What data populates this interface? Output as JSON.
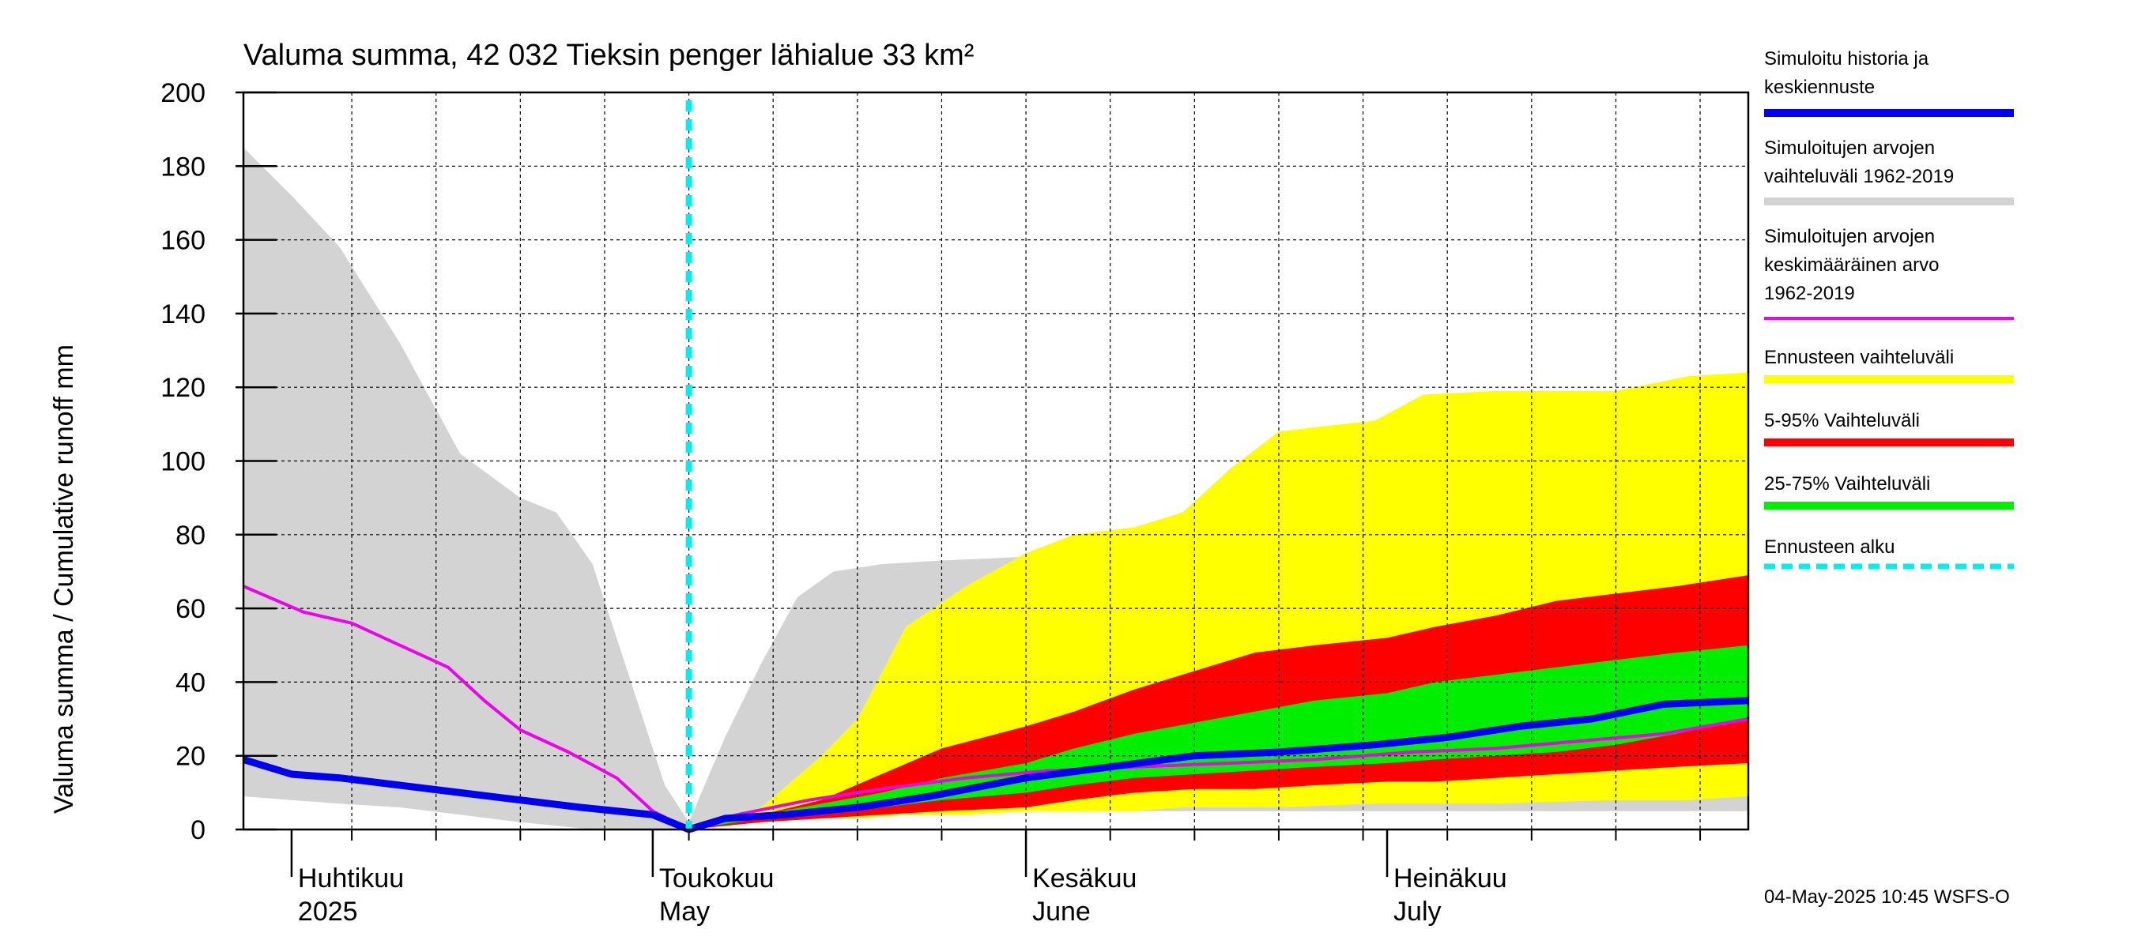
{
  "chart_data": {
    "type": "area",
    "title": "Valuma summa, 42 032 Tieksin penger lähialue 33 km²",
    "ylabel": "Valuma summa / Cumulative runoff     mm",
    "ylim": [
      0,
      200
    ],
    "yticks": [
      0,
      20,
      40,
      60,
      80,
      100,
      120,
      140,
      160,
      180,
      200
    ],
    "xlim": [
      "2025-03-28",
      "2025-07-31"
    ],
    "grid": true,
    "legend_position": "right",
    "month_labels": [
      {
        "date": "2025-04-01",
        "fi": "Huhtikuu",
        "en": "2025"
      },
      {
        "date": "2025-05-01",
        "fi": "Toukokuu",
        "en": "May"
      },
      {
        "date": "2025-06-01",
        "fi": "Kesäkuu",
        "en": "June"
      },
      {
        "date": "2025-07-01",
        "fi": "Heinäkuu",
        "en": "July"
      }
    ],
    "forecast_start": "2025-05-04",
    "colors": {
      "history": "#0000ee",
      "range_sim": "#d3d3d3",
      "mean_sim": "#ee00ee",
      "range_fc": "#ffff00",
      "p5_95": "#ff0000",
      "p25_75": "#00ee00",
      "fc_start": "#00eeee"
    },
    "legend": [
      {
        "lines": [
          "Simuloitu historia ja",
          "keskiennuste"
        ],
        "color": "#0000ee",
        "style": "solid"
      },
      {
        "lines": [
          "Simuloitujen arvojen",
          "vaihteluväli 1962-2019"
        ],
        "color": "#d3d3d3",
        "style": "solid"
      },
      {
        "lines": [
          "Simuloitujen arvojen",
          "keskimääräinen arvo",
          "   1962-2019"
        ],
        "color": "#ee00ee",
        "style": "thin"
      },
      {
        "lines": [
          "Ennusteen vaihteluväli"
        ],
        "color": "#ffff00",
        "style": "solid"
      },
      {
        "lines": [
          "5-95% Vaihteluväli"
        ],
        "color": "#ff0000",
        "style": "solid"
      },
      {
        "lines": [
          "25-75% Vaihteluväli"
        ],
        "color": "#00ee00",
        "style": "solid"
      },
      {
        "lines": [
          "Ennusteen alku"
        ],
        "color": "#00eeee",
        "style": "dashed"
      }
    ],
    "series": [
      {
        "name": "Simuloitujen arvojen vaihteluväli 1962-2019",
        "kind": "band",
        "x": [
          "2025-03-28",
          "2025-04-01",
          "2025-04-05",
          "2025-04-10",
          "2025-04-15",
          "2025-04-20",
          "2025-04-23",
          "2025-04-26",
          "2025-04-29",
          "2025-05-02",
          "2025-05-04",
          "2025-05-07",
          "2025-05-10",
          "2025-05-13",
          "2025-05-16",
          "2025-05-20",
          "2025-05-25",
          "2025-06-01",
          "2025-06-05",
          "2025-06-10",
          "2025-06-15",
          "2025-06-20",
          "2025-06-30",
          "2025-07-10",
          "2025-07-20",
          "2025-07-25",
          "2025-07-31"
        ],
        "low": [
          9,
          8,
          7,
          6,
          4,
          2,
          1,
          0,
          0,
          0,
          0,
          2,
          4,
          5,
          5,
          5,
          5,
          5,
          5,
          5,
          5,
          5,
          5,
          5,
          5,
          5,
          5
        ],
        "high": [
          185,
          172,
          158,
          132,
          102,
          90,
          86,
          72,
          42,
          12,
          2,
          25,
          45,
          63,
          70,
          72,
          73,
          74,
          75,
          76,
          78,
          79,
          79,
          79,
          79,
          81,
          86
        ]
      },
      {
        "name": "Ennusteen vaihteluväli",
        "kind": "band",
        "x": [
          "2025-05-04",
          "2025-05-10",
          "2025-05-15",
          "2025-05-18",
          "2025-05-22",
          "2025-05-27",
          "2025-06-01",
          "2025-06-05",
          "2025-06-10",
          "2025-06-14",
          "2025-06-18",
          "2025-06-22",
          "2025-06-30",
          "2025-07-04",
          "2025-07-10",
          "2025-07-20",
          "2025-07-26",
          "2025-07-31"
        ],
        "low": [
          0,
          2,
          3,
          3,
          4,
          4,
          5,
          5,
          5,
          6,
          6,
          6,
          7,
          7,
          7,
          8,
          8,
          9
        ],
        "high": [
          1,
          6,
          20,
          30,
          55,
          66,
          75,
          80,
          82,
          86,
          98,
          108,
          111,
          118,
          119,
          119,
          123,
          124
        ]
      },
      {
        "name": "5-95% Vaihteluväli",
        "kind": "band",
        "x": [
          "2025-05-04",
          "2025-05-10",
          "2025-05-15",
          "2025-05-20",
          "2025-05-25",
          "2025-06-01",
          "2025-06-05",
          "2025-06-10",
          "2025-06-15",
          "2025-06-20",
          "2025-06-25",
          "2025-07-01",
          "2025-07-05",
          "2025-07-10",
          "2025-07-15",
          "2025-07-20",
          "2025-07-25",
          "2025-07-31"
        ],
        "low": [
          0,
          2,
          3,
          4,
          5,
          6,
          8,
          10,
          11,
          11,
          12,
          13,
          13,
          14,
          15,
          16,
          17,
          18
        ],
        "high": [
          1,
          4,
          8,
          15,
          22,
          28,
          32,
          38,
          43,
          48,
          50,
          52,
          55,
          58,
          62,
          64,
          66,
          69
        ]
      },
      {
        "name": "25-75% Vaihteluväli",
        "kind": "band",
        "x": [
          "2025-05-04",
          "2025-05-10",
          "2025-05-15",
          "2025-05-20",
          "2025-05-25",
          "2025-06-01",
          "2025-06-05",
          "2025-06-10",
          "2025-06-15",
          "2025-06-20",
          "2025-06-25",
          "2025-07-01",
          "2025-07-05",
          "2025-07-10",
          "2025-07-15",
          "2025-07-20",
          "2025-07-25",
          "2025-07-31"
        ],
        "low": [
          0,
          3,
          4,
          6,
          8,
          10,
          12,
          14,
          15,
          16,
          17,
          18,
          19,
          20,
          21,
          23,
          26,
          30
        ],
        "high": [
          1,
          4,
          7,
          10,
          14,
          18,
          22,
          26,
          29,
          32,
          35,
          37,
          40,
          42,
          44,
          46,
          48,
          50
        ]
      },
      {
        "name": "Simuloitujen arvojen keskimääräinen arvo 1962-2019",
        "kind": "line",
        "x": [
          "2025-03-28",
          "2025-04-02",
          "2025-04-06",
          "2025-04-10",
          "2025-04-14",
          "2025-04-17",
          "2025-04-20",
          "2025-04-24",
          "2025-04-28",
          "2025-05-01",
          "2025-05-04",
          "2025-05-08",
          "2025-05-14",
          "2025-05-20",
          "2025-05-27",
          "2025-06-03",
          "2025-06-10",
          "2025-06-18",
          "2025-06-25",
          "2025-07-03",
          "2025-07-10",
          "2025-07-17",
          "2025-07-24",
          "2025-07-31"
        ],
        "values": [
          66,
          59,
          56,
          50,
          44,
          35,
          27,
          21,
          14,
          5,
          0,
          4,
          8,
          11,
          14,
          16,
          17,
          18,
          19,
          21,
          22,
          24,
          26,
          30
        ]
      },
      {
        "name": "Simuloitu historia ja keskiennuste",
        "kind": "line",
        "x": [
          "2025-03-28",
          "2025-04-01",
          "2025-04-05",
          "2025-04-10",
          "2025-04-15",
          "2025-04-20",
          "2025-04-25",
          "2025-05-01",
          "2025-05-04",
          "2025-05-07",
          "2025-05-12",
          "2025-05-18",
          "2025-05-24",
          "2025-06-01",
          "2025-06-08",
          "2025-06-15",
          "2025-06-22",
          "2025-06-30",
          "2025-07-06",
          "2025-07-12",
          "2025-07-18",
          "2025-07-24",
          "2025-07-31"
        ],
        "values": [
          19,
          15,
          14,
          12,
          10,
          8,
          6,
          4,
          0,
          3,
          4,
          6,
          9,
          14,
          17,
          20,
          21,
          23,
          25,
          28,
          30,
          34,
          35
        ]
      }
    ]
  },
  "footer": {
    "timestamp": "04-May-2025 10:45 WSFS-O"
  }
}
